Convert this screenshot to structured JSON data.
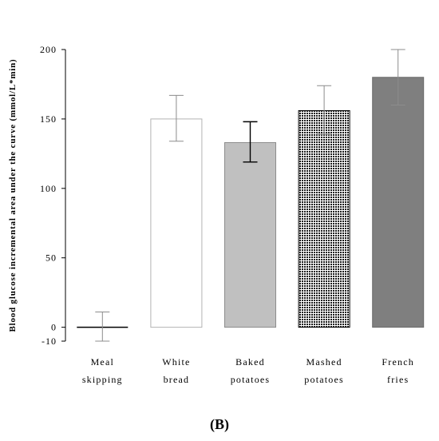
{
  "chart_data": {
    "type": "bar",
    "categories": [
      [
        "Meal",
        "skipping"
      ],
      [
        "White",
        "bread"
      ],
      [
        "Baked",
        "potatoes"
      ],
      [
        "Mashed",
        "potatoes"
      ],
      [
        "French",
        "fries"
      ]
    ],
    "values": [
      0,
      150,
      133,
      156,
      180
    ],
    "error_low": [
      -10,
      134,
      119,
      139,
      160
    ],
    "error_high": [
      11,
      167,
      148,
      174,
      200
    ],
    "fills": [
      "none",
      "#ffffff",
      "#c0c0c0",
      "pattern-dots",
      "#7f7f7f"
    ],
    "bar_strokes": [
      "#000000",
      "#b3b3b3",
      "#8c8c8c",
      "#000000",
      "#6a6a6a"
    ],
    "error_colors": [
      "#8c8c8c",
      "#8c8c8c",
      "#000000",
      "#8c8c8c",
      "#8c8c8c"
    ],
    "ylabel": "Blood glucose incremental area under the curve (mmol/L*min)",
    "xlabel": "",
    "ylim": [
      -10,
      200
    ],
    "yticks": [
      -10,
      0,
      50,
      100,
      150,
      200
    ],
    "panel_label": "(B)",
    "grid": false
  }
}
